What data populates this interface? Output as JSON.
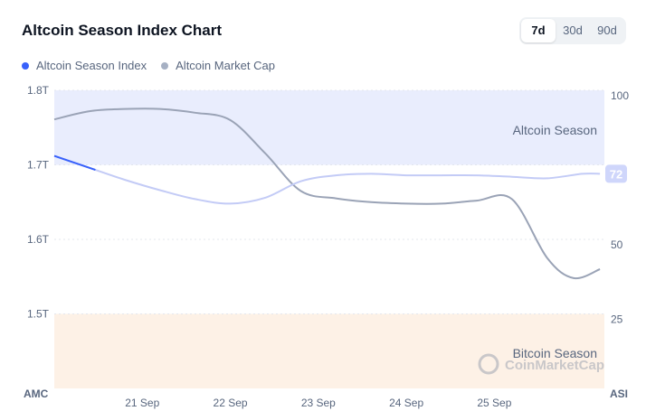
{
  "header": {
    "title": "Altcoin Season Index Chart",
    "tabs": [
      {
        "label": "7d",
        "active": true
      },
      {
        "label": "30d",
        "active": false
      },
      {
        "label": "90d",
        "active": false
      }
    ]
  },
  "colors": {
    "index_line": "#3861fb",
    "market_cap_line": "#a6b0c3",
    "altcoin_zone": "#e9edfd",
    "bitcoin_zone": "#fdf1e6",
    "badge": "#cfd6fb"
  },
  "chart_data": {
    "type": "line",
    "x_ticks": [
      "21 Sep",
      "22 Sep",
      "23 Sep",
      "24 Sep",
      "25 Sep"
    ],
    "left_axis": {
      "label": "AMC",
      "ticks": [
        "1.8T",
        "1.7T",
        "1.6T",
        "1.5T"
      ],
      "tick_values": [
        1.8,
        1.7,
        1.6,
        1.5
      ],
      "range": [
        1.4,
        1.8
      ]
    },
    "right_axis": {
      "label": "ASI",
      "ticks": [
        "100",
        "50",
        "25"
      ],
      "tick_values": [
        100,
        50,
        25
      ],
      "range": [
        0,
        100
      ]
    },
    "zones": [
      {
        "label": "Altcoin Season",
        "from": 75,
        "to": 100
      },
      {
        "label": "Bitcoin Season",
        "from": 0,
        "to": 25
      }
    ],
    "series": [
      {
        "name": "Altcoin Season Index",
        "axis": "right",
        "x": [
          20.0,
          20.4,
          20.8,
          21.2,
          21.6,
          22.0,
          22.4,
          22.8,
          23.2,
          23.6,
          24.0,
          24.4,
          24.8,
          25.2,
          25.6,
          26.0,
          26.2
        ],
        "values": [
          78,
          74,
          70,
          66.5,
          63.5,
          62,
          64,
          69.5,
          71.5,
          72,
          71.5,
          71.5,
          71.5,
          71,
          70.5,
          72,
          72
        ]
      },
      {
        "name": "Altcoin Market Cap",
        "axis": "left",
        "x": [
          20.0,
          20.4,
          20.8,
          21.2,
          21.6,
          22.0,
          22.4,
          22.8,
          23.2,
          23.6,
          24.0,
          24.4,
          24.8,
          25.2,
          25.6,
          25.9,
          26.2
        ],
        "values": [
          1.761,
          1.772,
          1.775,
          1.775,
          1.77,
          1.76,
          1.715,
          1.665,
          1.655,
          1.65,
          1.648,
          1.648,
          1.652,
          1.654,
          1.575,
          1.548,
          1.56
        ]
      }
    ],
    "current_value_badge": "72",
    "watermark": "CoinMarketCap"
  }
}
